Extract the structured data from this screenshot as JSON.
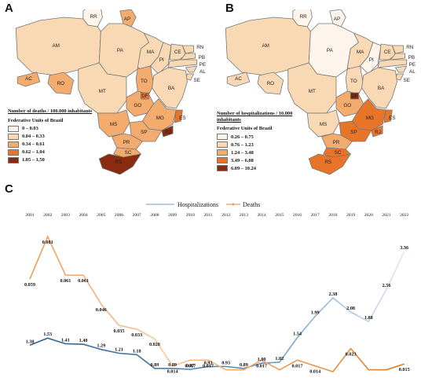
{
  "panels": {
    "a": {
      "letter": "A",
      "legend_title": "Number of deaths / 100.000 inhabitants",
      "legend_subtitle": "Federative Units of Brazil",
      "classes": [
        {
          "label": "0 – 0.03",
          "color": "#fdf5eb"
        },
        {
          "label": "0.04 – 0.33",
          "color": "#f9d9b4"
        },
        {
          "label": "0.34 – 0.61",
          "color": "#f4ab6e"
        },
        {
          "label": "0.62 – 1.04",
          "color": "#e8742a"
        },
        {
          "label": "1.05 – 1.50",
          "color": "#8a2a0e"
        }
      ],
      "states": {
        "RR": 0,
        "AP": 2,
        "AM": 1,
        "PA": 1,
        "MA": 1,
        "CE": 1,
        "RN": 1,
        "PB": 1,
        "PE": 1,
        "AL": 1,
        "SE": 1,
        "PI": 1,
        "AC": 2,
        "RO": 2,
        "TO": 2,
        "BA": 1,
        "MT": 1,
        "DF": 3,
        "GO": 2,
        "MG": 2,
        "ES": 3,
        "MS": 2,
        "SP": 2,
        "RJ": 4,
        "PR": 2,
        "SC": 2,
        "RS": 4
      }
    },
    "b": {
      "letter": "B",
      "legend_title": "Number of hospitalizations / 10.000 inhabitants",
      "legend_subtitle": "Federative Units of Brazil",
      "classes": [
        {
          "label": "0.26 – 0.75",
          "color": "#fdf5eb"
        },
        {
          "label": "0.76 – 1.23",
          "color": "#f9d9b4"
        },
        {
          "label": "1.24 – 3.48",
          "color": "#f4ab6e"
        },
        {
          "label": "3.49 – 6.08",
          "color": "#e8742a"
        },
        {
          "label": "6.09 – 10.24",
          "color": "#8a2a0e"
        }
      ],
      "states": {
        "RR": 0,
        "AP": 0,
        "AM": 1,
        "PA": 0,
        "MA": 1,
        "CE": 1,
        "RN": 1,
        "PB": 1,
        "PE": 1,
        "AL": 1,
        "SE": 1,
        "PI": 0,
        "AC": 1,
        "RO": 1,
        "TO": 1,
        "BA": 1,
        "MT": 1,
        "DF": 4,
        "GO": 2,
        "MG": 3,
        "ES": 3,
        "MS": 1,
        "SP": 3,
        "RJ": 3,
        "PR": 2,
        "SC": 3,
        "RS": 3
      }
    },
    "c": {
      "letter": "C"
    }
  },
  "chart_data": {
    "type": "line",
    "x": [
      "2001",
      "2002",
      "2003",
      "2004",
      "2005",
      "2006",
      "2007",
      "2008",
      "2009",
      "2010",
      "2011",
      "2012",
      "2013",
      "2014",
      "2015",
      "2016",
      "2017",
      "2018",
      "2019",
      "2020",
      "2021",
      "2022"
    ],
    "series": [
      {
        "name": "Hospitalizations",
        "color": "#8fb0d4",
        "values": [
          1.38,
          1.53,
          1.41,
          1.4,
          1.29,
          1.21,
          1.18,
          0.89,
          0.89,
          0.87,
          0.93,
          0.93,
          0.89,
          1.0,
          1.02,
          1.54,
          1.99,
          2.38,
          2.08,
          1.88,
          2.56,
          3.36
        ],
        "labels": [
          "1.38",
          "1.53",
          "1.41",
          "1.40",
          "1.29",
          "1.21",
          "1.18",
          "0.89",
          "0.89",
          "0.87",
          "0.93",
          "0.93",
          "0.89",
          "1.00",
          "1.02",
          "1.54",
          "1.99",
          "2.38",
          "2.08",
          "1.88",
          "2.56",
          "3.36"
        ]
      },
      {
        "name": "Deaths",
        "color": "#f0a060",
        "values": [
          0.059,
          0.081,
          0.061,
          0.061,
          0.046,
          0.035,
          0.033,
          0.028,
          0.014,
          0.017,
          0.017,
          0.012,
          0.012,
          0.017,
          0.012,
          0.017,
          0.014,
          0.011,
          0.023,
          0.012,
          0.012,
          0.015
        ],
        "labels": [
          "0.059",
          "0.081",
          "0.061",
          "0.061",
          "0.046",
          "0.035",
          "0.033",
          "0.028",
          "0.014",
          "0.017",
          "0.017",
          "0.012",
          "0.012",
          "0.017",
          "0.012",
          "0.017",
          "0.014",
          "0.011",
          "0.023",
          "0.012",
          "0.012",
          "0.015"
        ]
      }
    ],
    "legend_position": "top-center",
    "grid": false
  }
}
